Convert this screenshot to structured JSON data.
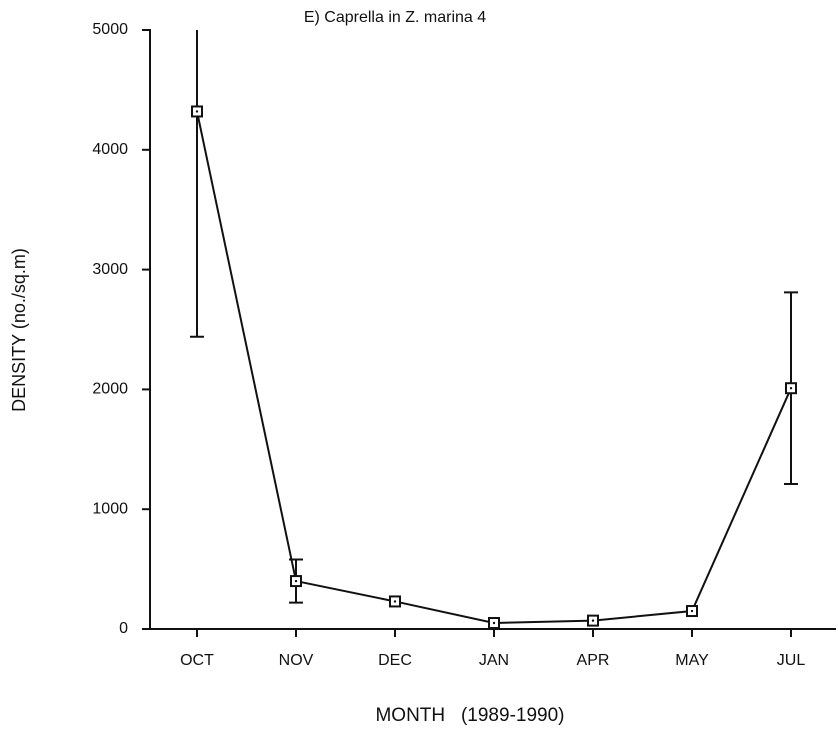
{
  "chart_data": {
    "type": "line",
    "title": "E) Caprella in Z. marina 4",
    "x_label": "MONTH   (1989-1990)",
    "y_label": "DENSITY (no./sq.m)",
    "categories": [
      "OCT",
      "NOV",
      "DEC",
      "JAN",
      "APR",
      "MAY",
      "JUL"
    ],
    "series": [
      {
        "name": "Caprella",
        "color": "#111111",
        "values": [
          4320,
          400,
          230,
          50,
          70,
          150,
          2010
        ],
        "errors": [
          1880,
          180,
          null,
          null,
          null,
          null,
          800
        ]
      }
    ],
    "ylim": [
      0,
      5000
    ],
    "yticks": [
      0,
      1000,
      2000,
      3000,
      4000,
      5000
    ],
    "grid": false
  }
}
